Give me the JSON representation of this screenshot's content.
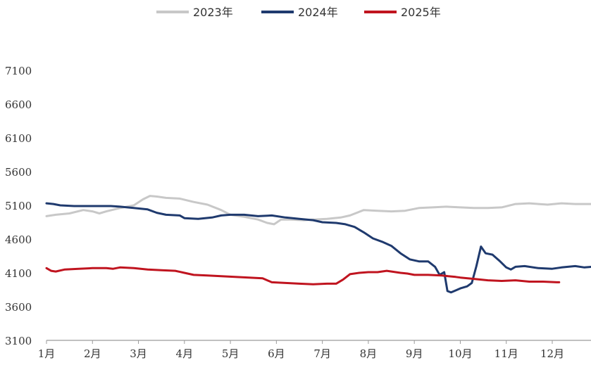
{
  "chart_data": {
    "type": "line",
    "title": "",
    "xlabel": "",
    "ylabel": "",
    "x_ticks": [
      "1月",
      "2月",
      "3月",
      "4月",
      "5月",
      "6月",
      "7月",
      "8月",
      "9月",
      "10月",
      "11月",
      "12月"
    ],
    "y_ticks": [
      3100,
      3600,
      4100,
      4600,
      5100,
      5600,
      6100,
      6600,
      7100
    ],
    "ylim": [
      3100,
      7100
    ],
    "xlim": [
      1,
      12.85
    ],
    "grid": false,
    "legend_position": "top-center",
    "series": [
      {
        "name": "2023年",
        "color": "#c8c8c8",
        "points": [
          [
            1.0,
            4940
          ],
          [
            1.2,
            4960
          ],
          [
            1.5,
            4980
          ],
          [
            1.8,
            5030
          ],
          [
            2.0,
            5010
          ],
          [
            2.15,
            4980
          ],
          [
            2.3,
            5010
          ],
          [
            2.6,
            5060
          ],
          [
            2.9,
            5100
          ],
          [
            3.1,
            5190
          ],
          [
            3.25,
            5240
          ],
          [
            3.4,
            5230
          ],
          [
            3.6,
            5210
          ],
          [
            3.9,
            5200
          ],
          [
            4.2,
            5150
          ],
          [
            4.5,
            5110
          ],
          [
            4.8,
            5030
          ],
          [
            5.0,
            4960
          ],
          [
            5.3,
            4930
          ],
          [
            5.6,
            4890
          ],
          [
            5.8,
            4840
          ],
          [
            5.95,
            4820
          ],
          [
            6.1,
            4890
          ],
          [
            6.3,
            4890
          ],
          [
            6.6,
            4880
          ],
          [
            6.8,
            4890
          ],
          [
            7.1,
            4900
          ],
          [
            7.4,
            4920
          ],
          [
            7.6,
            4950
          ],
          [
            7.9,
            5030
          ],
          [
            8.2,
            5020
          ],
          [
            8.5,
            5010
          ],
          [
            8.8,
            5020
          ],
          [
            9.1,
            5060
          ],
          [
            9.4,
            5070
          ],
          [
            9.7,
            5080
          ],
          [
            10.0,
            5070
          ],
          [
            10.3,
            5060
          ],
          [
            10.6,
            5060
          ],
          [
            10.9,
            5070
          ],
          [
            11.2,
            5120
          ],
          [
            11.5,
            5130
          ],
          [
            11.7,
            5120
          ],
          [
            11.9,
            5110
          ],
          [
            12.2,
            5130
          ],
          [
            12.5,
            5120
          ],
          [
            12.85,
            5120
          ]
        ]
      },
      {
        "name": "2024年",
        "color": "#1f3a6e",
        "points": [
          [
            1.0,
            5130
          ],
          [
            1.15,
            5120
          ],
          [
            1.3,
            5100
          ],
          [
            1.6,
            5090
          ],
          [
            1.9,
            5090
          ],
          [
            2.2,
            5090
          ],
          [
            2.4,
            5090
          ],
          [
            2.6,
            5080
          ],
          [
            2.9,
            5060
          ],
          [
            3.2,
            5040
          ],
          [
            3.4,
            4990
          ],
          [
            3.6,
            4960
          ],
          [
            3.9,
            4950
          ],
          [
            4.0,
            4910
          ],
          [
            4.3,
            4900
          ],
          [
            4.6,
            4920
          ],
          [
            4.8,
            4950
          ],
          [
            5.0,
            4960
          ],
          [
            5.3,
            4960
          ],
          [
            5.6,
            4940
          ],
          [
            5.9,
            4950
          ],
          [
            6.2,
            4920
          ],
          [
            6.5,
            4900
          ],
          [
            6.8,
            4880
          ],
          [
            7.0,
            4850
          ],
          [
            7.3,
            4840
          ],
          [
            7.5,
            4820
          ],
          [
            7.7,
            4780
          ],
          [
            7.9,
            4700
          ],
          [
            8.1,
            4610
          ],
          [
            8.3,
            4560
          ],
          [
            8.5,
            4500
          ],
          [
            8.7,
            4390
          ],
          [
            8.9,
            4300
          ],
          [
            9.1,
            4270
          ],
          [
            9.3,
            4270
          ],
          [
            9.45,
            4190
          ],
          [
            9.55,
            4070
          ],
          [
            9.65,
            4110
          ],
          [
            9.72,
            3830
          ],
          [
            9.8,
            3810
          ],
          [
            9.9,
            3840
          ],
          [
            10.0,
            3870
          ],
          [
            10.15,
            3900
          ],
          [
            10.25,
            3950
          ],
          [
            10.35,
            4200
          ],
          [
            10.45,
            4490
          ],
          [
            10.55,
            4390
          ],
          [
            10.7,
            4370
          ],
          [
            10.85,
            4280
          ],
          [
            11.0,
            4180
          ],
          [
            11.1,
            4150
          ],
          [
            11.2,
            4190
          ],
          [
            11.4,
            4200
          ],
          [
            11.7,
            4170
          ],
          [
            12.0,
            4160
          ],
          [
            12.2,
            4180
          ],
          [
            12.5,
            4200
          ],
          [
            12.7,
            4180
          ],
          [
            12.85,
            4190
          ]
        ]
      },
      {
        "name": "2025年",
        "color": "#c0141f",
        "points": [
          [
            1.0,
            4170
          ],
          [
            1.1,
            4130
          ],
          [
            1.2,
            4120
          ],
          [
            1.4,
            4150
          ],
          [
            1.7,
            4160
          ],
          [
            2.0,
            4170
          ],
          [
            2.3,
            4170
          ],
          [
            2.45,
            4160
          ],
          [
            2.6,
            4180
          ],
          [
            2.9,
            4170
          ],
          [
            3.2,
            4150
          ],
          [
            3.5,
            4140
          ],
          [
            3.8,
            4130
          ],
          [
            4.0,
            4100
          ],
          [
            4.2,
            4070
          ],
          [
            4.5,
            4060
          ],
          [
            4.8,
            4050
          ],
          [
            5.1,
            4040
          ],
          [
            5.4,
            4030
          ],
          [
            5.7,
            4020
          ],
          [
            5.9,
            3960
          ],
          [
            6.2,
            3950
          ],
          [
            6.5,
            3940
          ],
          [
            6.8,
            3930
          ],
          [
            7.1,
            3940
          ],
          [
            7.3,
            3940
          ],
          [
            7.45,
            4000
          ],
          [
            7.6,
            4080
          ],
          [
            7.8,
            4100
          ],
          [
            8.0,
            4110
          ],
          [
            8.2,
            4110
          ],
          [
            8.4,
            4130
          ],
          [
            8.7,
            4100
          ],
          [
            8.85,
            4090
          ],
          [
            9.0,
            4070
          ],
          [
            9.3,
            4070
          ],
          [
            9.6,
            4060
          ],
          [
            9.9,
            4040
          ],
          [
            10.0,
            4030
          ],
          [
            10.3,
            4010
          ],
          [
            10.6,
            3990
          ],
          [
            10.9,
            3980
          ],
          [
            11.2,
            3990
          ],
          [
            11.5,
            3970
          ],
          [
            11.8,
            3970
          ],
          [
            12.1,
            3960
          ],
          [
            12.15,
            3960
          ]
        ]
      }
    ]
  }
}
